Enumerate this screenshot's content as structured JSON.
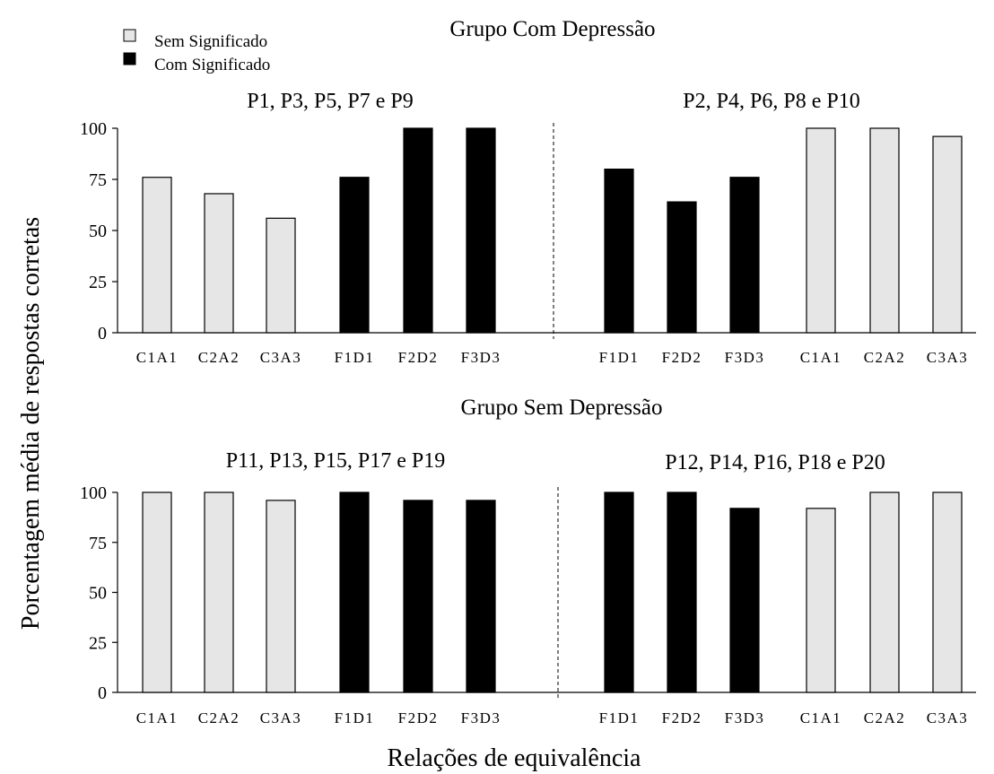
{
  "chart_data": {
    "type": "bar",
    "ylabel": "Porcentagem média de respostas corretas",
    "xlabel": "Relações de equivalência",
    "ylim": [
      0,
      100
    ],
    "yticks": [
      0,
      25,
      50,
      75,
      100
    ],
    "legend": {
      "placement": "top-left",
      "items": [
        {
          "label": "Sem Significado",
          "color": "#e6e6e6"
        },
        {
          "label": "Com Significado",
          "color": "#000000"
        }
      ]
    },
    "groups": [
      {
        "title": "Grupo Com Depressão",
        "panels": [
          {
            "title": "P1, P3, P5, P7 e P9",
            "categories": [
              "C1A1",
              "C2A2",
              "C3A3",
              "F1D1",
              "F2D2",
              "F3D3"
            ],
            "values": [
              76,
              68,
              56,
              76,
              100,
              100
            ],
            "conditions": [
              "Sem Significado",
              "Sem Significado",
              "Sem Significado",
              "Com Significado",
              "Com Significado",
              "Com Significado"
            ]
          },
          {
            "title": "P2, P4, P6, P8 e P10",
            "categories": [
              "F1D1",
              "F2D2",
              "F3D3",
              "C1A1",
              "C2A2",
              "C3A3"
            ],
            "values": [
              80,
              64,
              76,
              100,
              100,
              96
            ],
            "conditions": [
              "Com Significado",
              "Com Significado",
              "Com Significado",
              "Sem Significado",
              "Sem Significado",
              "Sem Significado"
            ]
          }
        ]
      },
      {
        "title": "Grupo Sem Depressão",
        "panels": [
          {
            "title": "P11, P13, P15, P17 e P19",
            "categories": [
              "C1A1",
              "C2A2",
              "C3A3",
              "F1D1",
              "F2D2",
              "F3D3"
            ],
            "values": [
              100,
              100,
              96,
              100,
              96,
              96
            ],
            "conditions": [
              "Sem Significado",
              "Sem Significado",
              "Sem Significado",
              "Com Significado",
              "Com Significado",
              "Com Significado"
            ]
          },
          {
            "title": "P12, P14, P16, P18 e P20",
            "categories": [
              "F1D1",
              "F2D2",
              "F3D3",
              "C1A1",
              "C2A2",
              "C3A3"
            ],
            "values": [
              100,
              100,
              92,
              92,
              100,
              100
            ],
            "conditions": [
              "Com Significado",
              "Com Significado",
              "Com Significado",
              "Sem Significado",
              "Sem Significado",
              "Sem Significado"
            ]
          }
        ]
      }
    ]
  }
}
